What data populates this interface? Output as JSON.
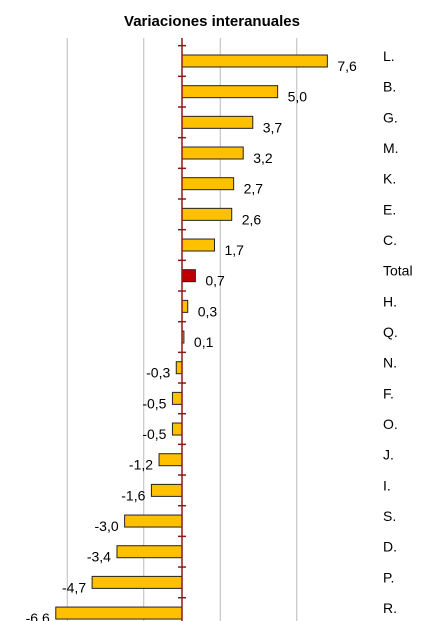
{
  "chart_data": {
    "type": "hbar",
    "title": "Variaciones interanuales",
    "categories": [
      "L.",
      "B.",
      "G.",
      "M.",
      "K.",
      "E.",
      "C.",
      "Total",
      "H.",
      "Q.",
      "N.",
      "F.",
      "O.",
      "J.",
      "I.",
      "S.",
      "D.",
      "P.",
      "R."
    ],
    "values": [
      7.6,
      5.0,
      3.7,
      3.2,
      2.7,
      2.6,
      1.7,
      0.7,
      0.3,
      0.1,
      -0.3,
      -0.5,
      -0.5,
      -1.2,
      -1.6,
      -3.0,
      -3.4,
      -4.7,
      -6.6
    ],
    "value_labels": [
      "7,6",
      "5,0",
      "3,7",
      "3,2",
      "2,7",
      "2,6",
      "1,7",
      "0,7",
      "0,3",
      "0,1",
      "-0,3",
      "-0,5",
      "-0,5",
      "-1,2",
      "-1,6",
      "-3,0",
      "-3,4",
      "-4,7",
      "-6,6"
    ],
    "colors": [
      "#ffc000",
      "#ffc000",
      "#ffc000",
      "#ffc000",
      "#ffc000",
      "#ffc000",
      "#ffc000",
      "#c00000",
      "#ffc000",
      "#ffc000",
      "#ffc000",
      "#ffc000",
      "#ffc000",
      "#ffc000",
      "#ffc000",
      "#ffc000",
      "#ffc000",
      "#ffc000",
      "#ffc000"
    ],
    "xlim": [
      -8,
      8
    ],
    "xticks": [
      -6,
      -2,
      2,
      6
    ],
    "grid": true,
    "axis_color": "#8b1a1a"
  }
}
